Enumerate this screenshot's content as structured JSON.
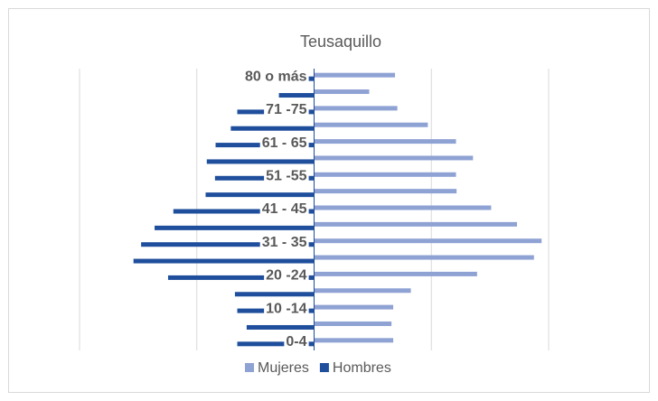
{
  "chart_data": {
    "type": "pyramid",
    "title": "Teusaquillo",
    "categories": [
      "0-4",
      null,
      "10 -14",
      null,
      "20 -24",
      null,
      "31 - 35",
      null,
      "41 - 45",
      null,
      "51 -55",
      null,
      "61 - 65",
      null,
      "71 -75",
      null,
      "80 o más"
    ],
    "series": [
      {
        "name": "Mujeres",
        "color": "#8FA2D4",
        "values": [
          1.35,
          1.32,
          1.35,
          1.65,
          2.78,
          3.75,
          3.88,
          3.46,
          3.02,
          2.43,
          2.42,
          2.71,
          2.42,
          1.94,
          1.42,
          0.94,
          1.38
        ]
      },
      {
        "name": "Hombres",
        "color": "#1F4E9C",
        "values": [
          -1.31,
          -1.15,
          -1.31,
          -1.35,
          -2.49,
          -3.08,
          -2.95,
          -2.72,
          -2.4,
          -1.85,
          -1.69,
          -1.83,
          -1.68,
          -1.42,
          -1.31,
          -0.6,
          -0.45
        ]
      }
    ],
    "xlim": [
      -4,
      4
    ],
    "xticks": [
      -4,
      -2,
      2,
      4
    ],
    "grid": true,
    "legend": "bottom"
  }
}
